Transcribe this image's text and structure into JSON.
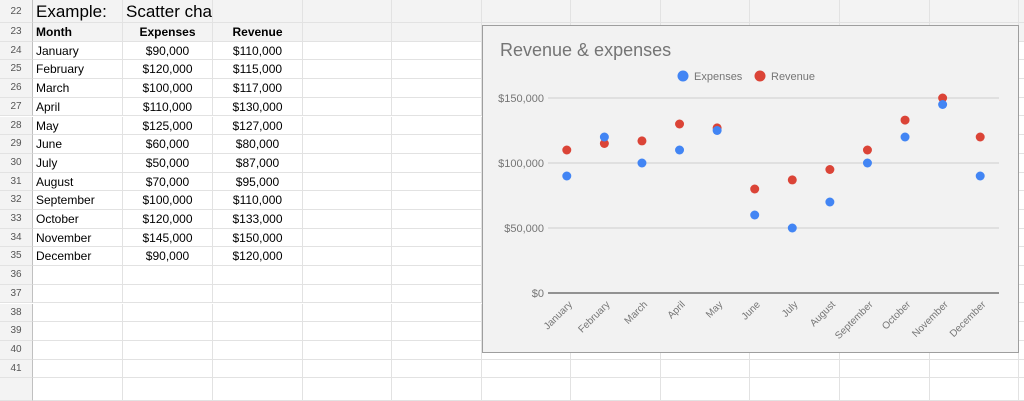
{
  "sheet": {
    "row_numbers": [
      "22",
      "23",
      "24",
      "25",
      "26",
      "27",
      "28",
      "29",
      "30",
      "31",
      "32",
      "33",
      "34",
      "35",
      "36",
      "37",
      "38",
      "39",
      "40",
      "41"
    ],
    "title_label": "Example:",
    "title_value": "Scatter chart",
    "headers": [
      "Month",
      "Expenses",
      "Revenue"
    ],
    "rows": [
      [
        "January",
        "$90,000",
        "$110,000"
      ],
      [
        "February",
        "$120,000",
        "$115,000"
      ],
      [
        "March",
        "$100,000",
        "$117,000"
      ],
      [
        "April",
        "$110,000",
        "$130,000"
      ],
      [
        "May",
        "$125,000",
        "$127,000"
      ],
      [
        "June",
        "$60,000",
        "$80,000"
      ],
      [
        "July",
        "$50,000",
        "$87,000"
      ],
      [
        "August",
        "$70,000",
        "$95,000"
      ],
      [
        "September",
        "$100,000",
        "$110,000"
      ],
      [
        "October",
        "$120,000",
        "$133,000"
      ],
      [
        "November",
        "$145,000",
        "$150,000"
      ],
      [
        "December",
        "$90,000",
        "$120,000"
      ]
    ]
  },
  "chart_data": {
    "type": "scatter",
    "title": "Revenue & expenses",
    "categories": [
      "January",
      "February",
      "March",
      "April",
      "May",
      "June",
      "July",
      "August",
      "September",
      "October",
      "November",
      "December"
    ],
    "series": [
      {
        "name": "Expenses",
        "color": "#4285f4",
        "values": [
          90000,
          120000,
          100000,
          110000,
          125000,
          60000,
          50000,
          70000,
          100000,
          120000,
          145000,
          90000
        ]
      },
      {
        "name": "Revenue",
        "color": "#db4437",
        "values": [
          110000,
          115000,
          117000,
          130000,
          127000,
          80000,
          87000,
          95000,
          110000,
          133000,
          150000,
          120000
        ]
      }
    ],
    "yticks": [
      0,
      50000,
      100000,
      150000
    ],
    "ytick_labels": [
      "$0",
      "$50,000",
      "$100,000",
      "$150,000"
    ],
    "ylim": [
      0,
      150000
    ],
    "legend": "top",
    "grid": true
  }
}
